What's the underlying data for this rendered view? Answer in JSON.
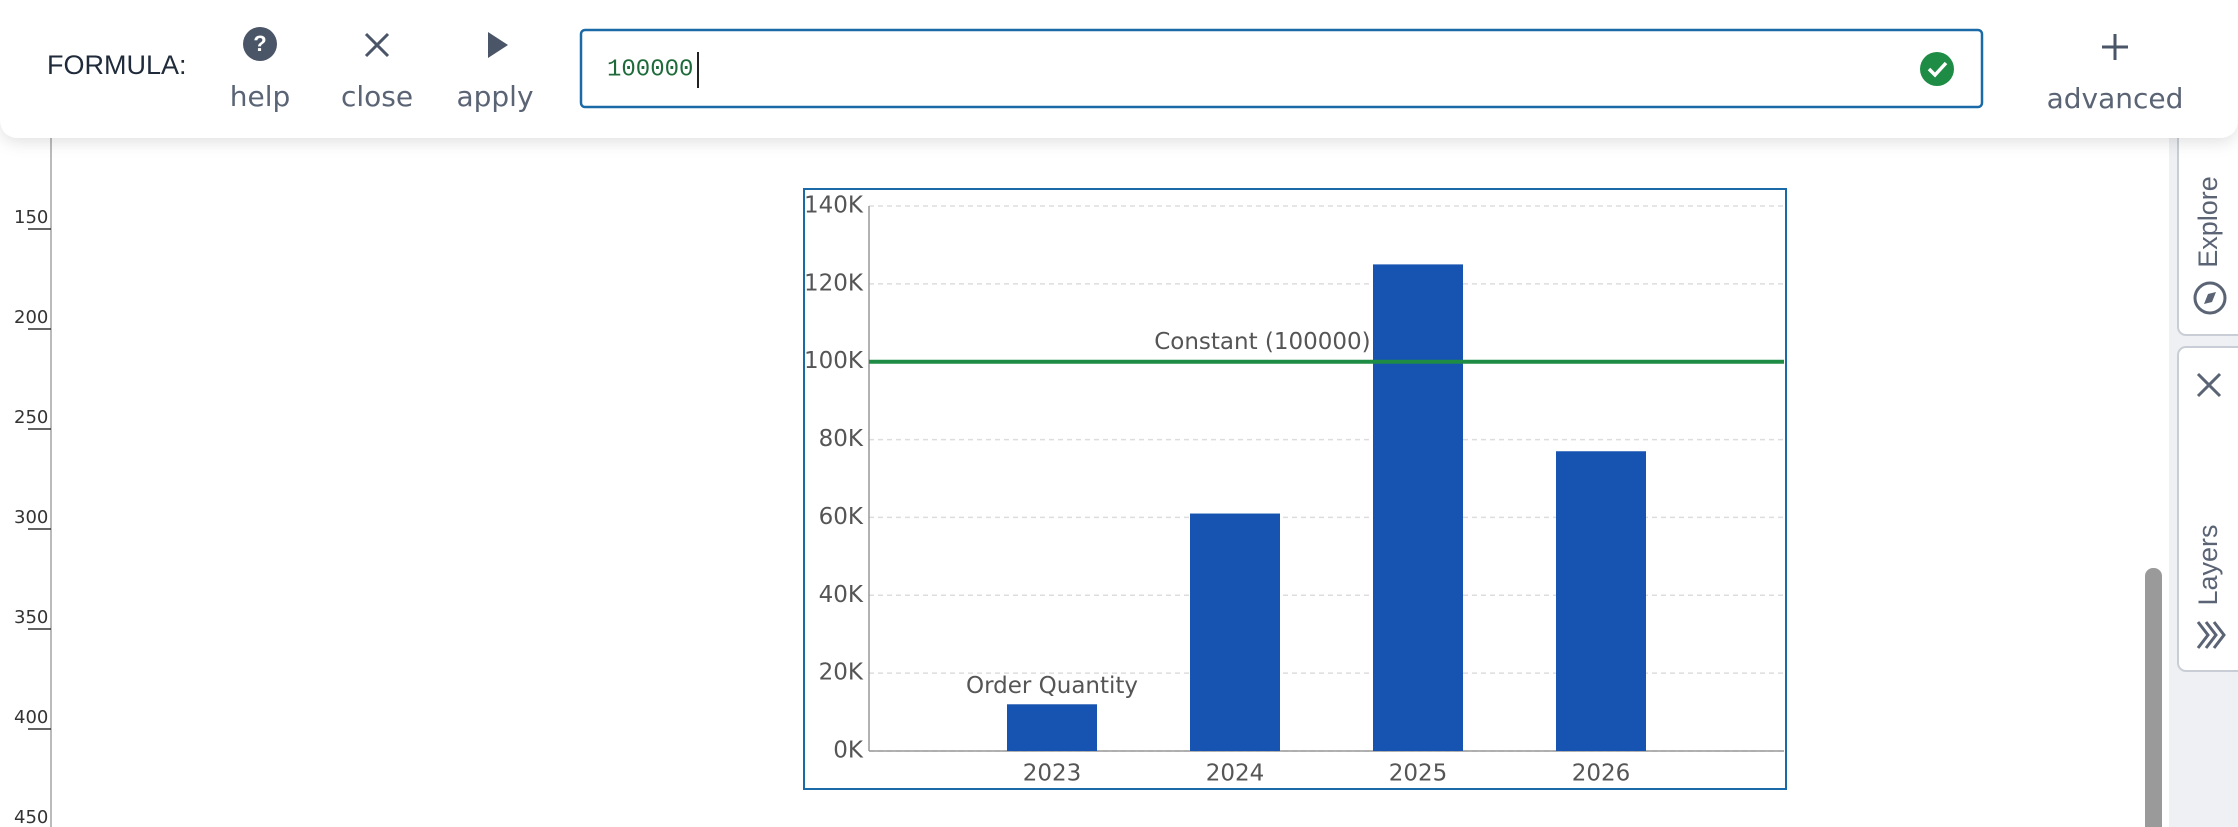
{
  "toolbar": {
    "label": "FORMULA:",
    "buttons": [
      "help",
      "close",
      "apply"
    ],
    "formula": "100000",
    "advanced": "advanced"
  },
  "ruler": {
    "labels": [
      150,
      200,
      250,
      300,
      350,
      400,
      450
    ]
  },
  "sidebar": {
    "tabs": [
      "Explore",
      "Layers"
    ]
  },
  "chart_data": {
    "type": "bar",
    "categories": [
      "2023",
      "2024",
      "2025",
      "2026"
    ],
    "series": [
      {
        "name": "Order Quantity",
        "color": "#1753b0",
        "values": [
          12000,
          61000,
          125000,
          77000
        ]
      }
    ],
    "ylim": [
      0,
      140000
    ],
    "yticks": [
      {
        "value": 0,
        "label": "0K"
      },
      {
        "value": 20000,
        "label": "20K"
      },
      {
        "value": 40000,
        "label": "40K"
      },
      {
        "value": 60000,
        "label": "60K"
      },
      {
        "value": 80000,
        "label": "80K"
      },
      {
        "value": 100000,
        "label": "100K"
      },
      {
        "value": 120000,
        "label": "120K"
      },
      {
        "value": 140000,
        "label": "140K"
      }
    ],
    "grid": true,
    "reference_line": {
      "value": 100000,
      "label": "Constant (100000)",
      "color": "#1e8c45"
    }
  }
}
